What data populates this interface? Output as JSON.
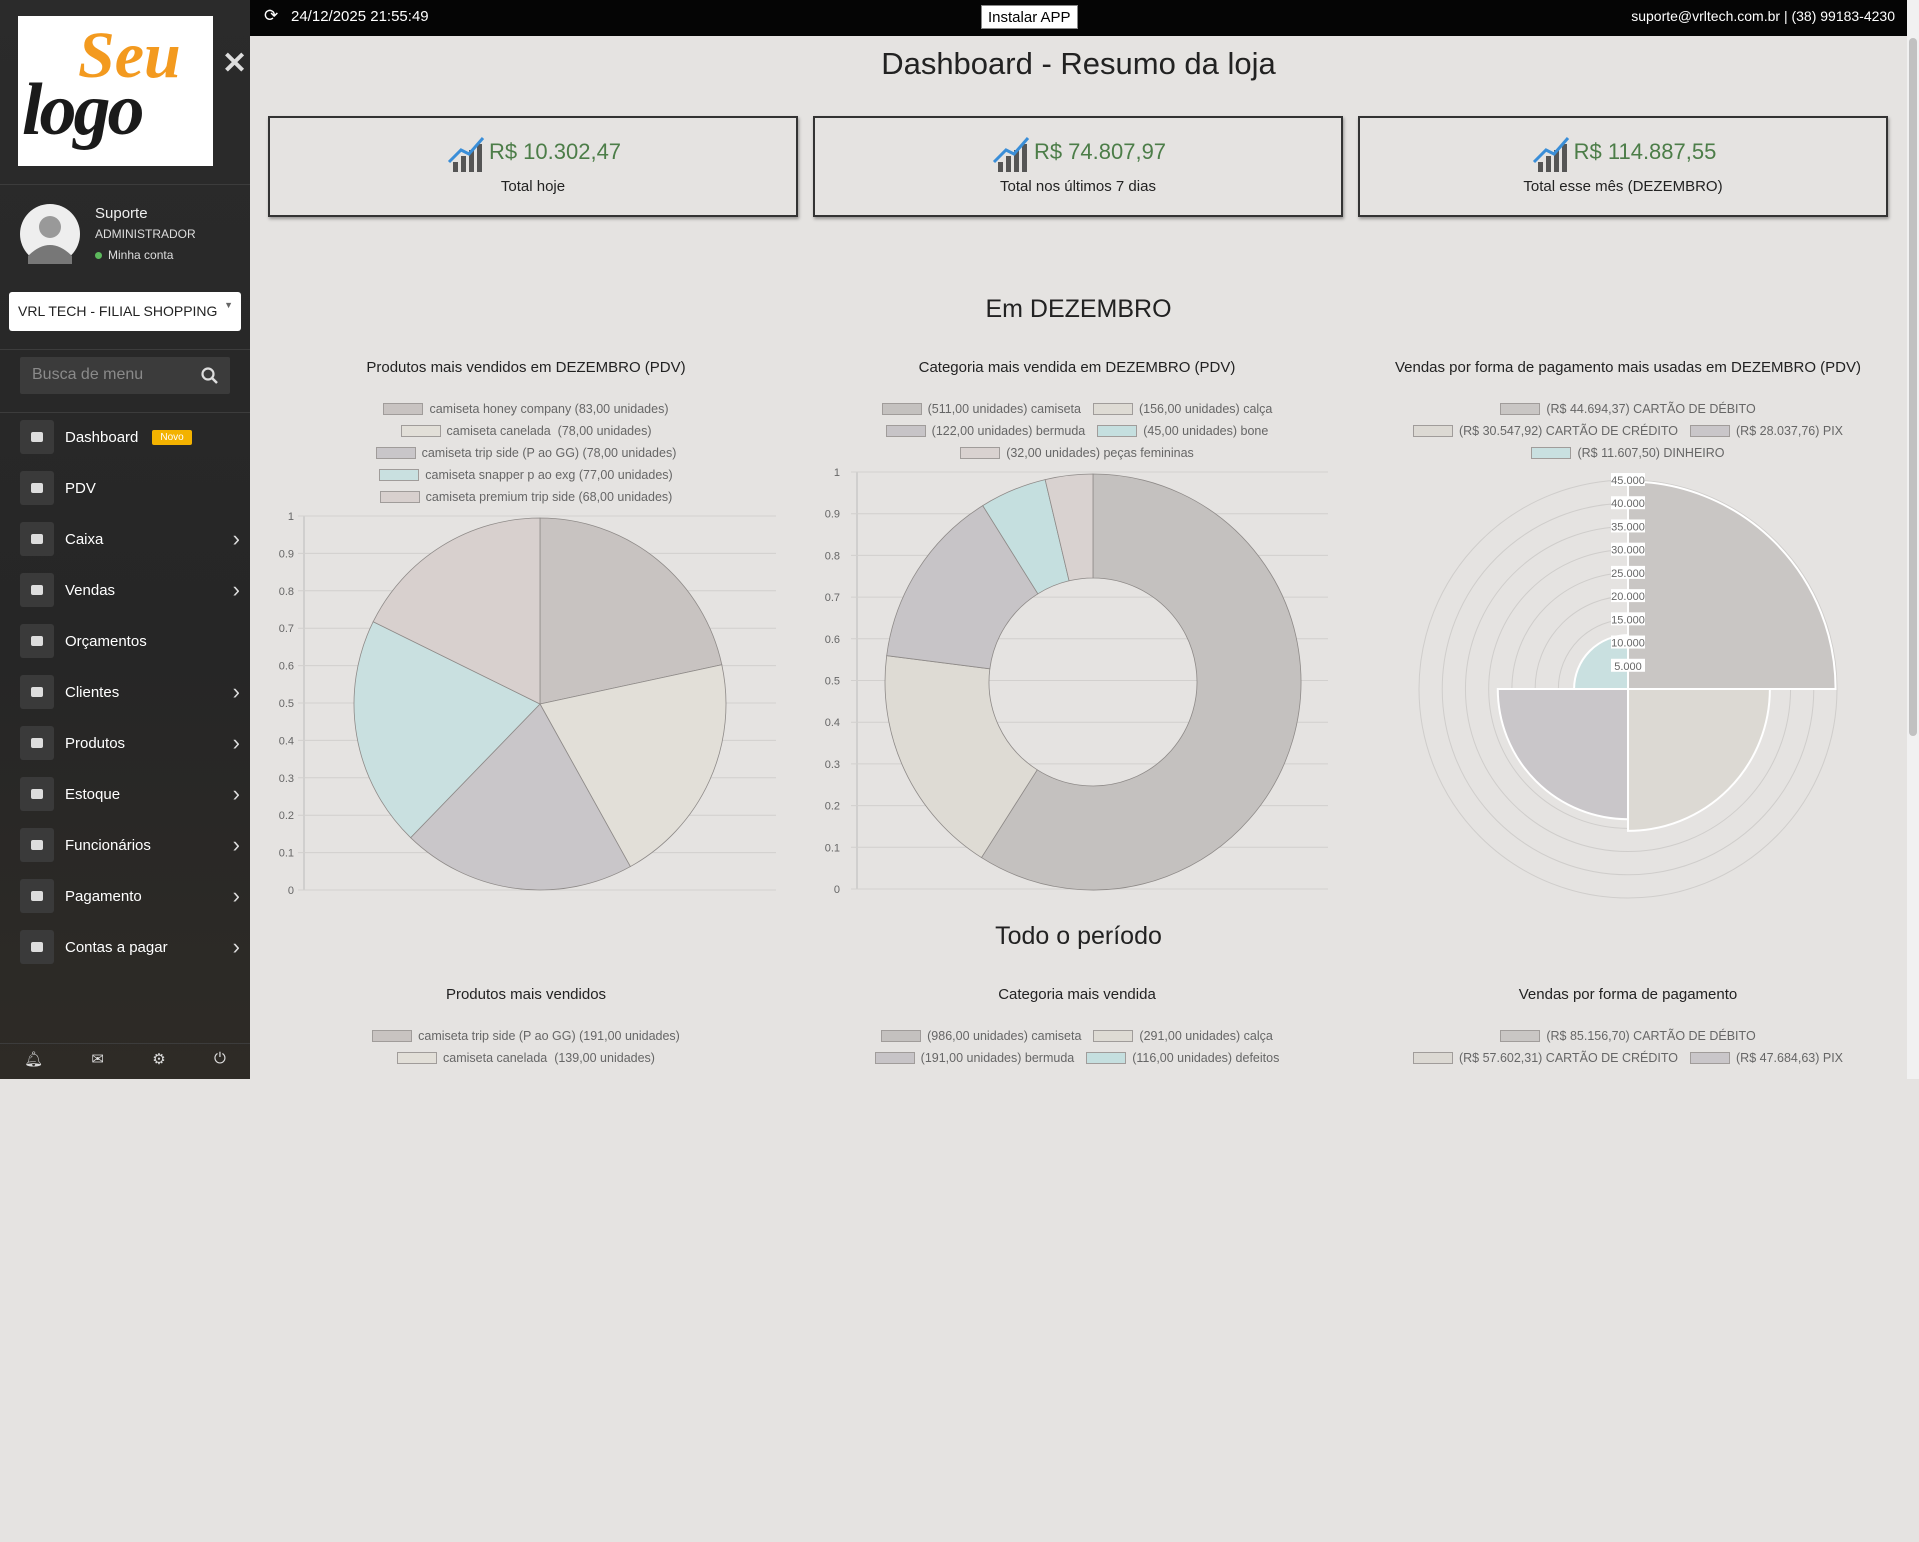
{
  "header": {
    "timestamp": "24/12/2025 21:55:49",
    "install_button": "Instalar APP",
    "contact": "suporte@vrltech.com.br | (38) 99183-4230"
  },
  "sidebar": {
    "logo": [
      "Seu",
      "logo"
    ],
    "user": {
      "name": "Suporte",
      "role": "ADMINISTRADOR",
      "account": "Minha conta"
    },
    "store": "VRL TECH - FILIAL SHOPPING",
    "search_placeholder": "Busca de menu",
    "menu": [
      {
        "label": "Dashboard",
        "badge": "Novo"
      },
      {
        "label": "PDV"
      },
      {
        "label": "Caixa",
        "submenu": true
      },
      {
        "label": "Vendas",
        "submenu": true
      },
      {
        "label": "Orçamentos"
      },
      {
        "label": "Clientes",
        "submenu": true
      },
      {
        "label": "Produtos",
        "submenu": true
      },
      {
        "label": "Estoque",
        "submenu": true
      },
      {
        "label": "Funcionários",
        "submenu": true
      },
      {
        "label": "Pagamento",
        "submenu": true
      },
      {
        "label": "Contas a pagar",
        "submenu": true
      }
    ]
  },
  "main": {
    "title": "Dashboard - Resumo da loja",
    "cards": [
      {
        "value": "R$ 10.302,47",
        "label": "Total hoje"
      },
      {
        "value": "R$ 74.807,97",
        "label": "Total nos últimos 7 dias"
      },
      {
        "value": "R$ 114.887,55",
        "label": "Total esse mês (DEZEMBRO)"
      }
    ],
    "sections": [
      {
        "title": "Em DEZEMBRO",
        "charts": [
          {
            "type": "pie",
            "title": "Produtos mais vendidos em DEZEMBRO (PDV)",
            "categories": [
              "camiseta honey company (83,00 unidades)",
              "camiseta canelada  (78,00 unidades)",
              "camiseta trip side (P ao GG) (78,00 unidades)",
              "camiseta snapper p ao exg (77,00 unidades)",
              "camiseta premium trip side (68,00 unidades)"
            ],
            "values": [
              83,
              78,
              78,
              77,
              68
            ],
            "colors": [
              "#c8c3c1",
              "#e2dfd8",
              "#c9c6c9",
              "#c9e0e0",
              "#d8d0ce"
            ],
            "ylim": [
              0,
              1
            ],
            "yticks": [
              0,
              0.1,
              0.2,
              0.3,
              0.4,
              0.5,
              0.6,
              0.7,
              0.8,
              0.9,
              1
            ]
          },
          {
            "type": "doughnut",
            "title": "Categoria mais vendida em DEZEMBRO (PDV)",
            "categories": [
              "(511,00 unidades) camiseta",
              "(156,00 unidades) calça",
              "(122,00 unidades) bermuda",
              "(45,00 unidades) bone",
              "(32,00 unidades) peças femininas"
            ],
            "values": [
              511,
              156,
              122,
              45,
              32
            ],
            "colors": [
              "#c4c1bf",
              "#dedbd4",
              "#c7c4c7",
              "#c5dfdf",
              "#d9d2d0"
            ],
            "ylim": [
              0,
              1
            ],
            "yticks": [
              0,
              0.1,
              0.2,
              0.3,
              0.4,
              0.5,
              0.6,
              0.7,
              0.8,
              0.9,
              1
            ]
          },
          {
            "type": "polarArea",
            "title": "Vendas por forma de pagamento mais usadas em DEZEMBRO (PDV)",
            "categories": [
              "(R$ 44.694,37) CARTÃO DE DÉBITO",
              "(R$ 30.547,92) CARTÃO DE CRÉDITO",
              "(R$ 28.037,76) PIX",
              "(R$ 11.607,50) DINHEIRO"
            ],
            "values": [
              44694.37,
              30547.92,
              28037.76,
              11607.5
            ],
            "colors": [
              "#c9c6c4",
              "#dcd9d3",
              "#c9c6c9",
              "#c9e0e0"
            ],
            "rlim": [
              0,
              45000
            ],
            "rticks": [
              {
                "value": 5000,
                "label": "5.000"
              },
              {
                "value": 10000,
                "label": "10.000"
              },
              {
                "value": 15000,
                "label": "15.000"
              },
              {
                "value": 20000,
                "label": "20.000"
              },
              {
                "value": 25000,
                "label": "25.000"
              },
              {
                "value": 30000,
                "label": "30.000"
              },
              {
                "value": 35000,
                "label": "35.000"
              },
              {
                "value": 40000,
                "label": "40.000"
              },
              {
                "value": 45000,
                "label": "45.000"
              }
            ]
          }
        ]
      },
      {
        "title": "Todo o período",
        "charts": [
          {
            "type": "pie",
            "title": "Produtos mais vendidos",
            "categories": [
              "camiseta trip side (P ao GG) (191,00 unidades)",
              "camiseta canelada  (139,00 unidades)"
            ],
            "colors": [
              "#c8c3c1",
              "#e2dfd8"
            ]
          },
          {
            "type": "doughnut",
            "title": "Categoria mais vendida",
            "categories": [
              "(986,00 unidades) camiseta",
              "(291,00 unidades) calça",
              "(191,00 unidades) bermuda",
              "(116,00 unidades) defeitos"
            ],
            "colors": [
              "#c4c1bf",
              "#dedbd4",
              "#c7c4c7",
              "#c5dfdf"
            ]
          },
          {
            "type": "polarArea",
            "title": "Vendas por forma de pagamento",
            "categories": [
              "(R$ 85.156,70) CARTÃO DE DÉBITO",
              "(R$ 57.602,31) CARTÃO DE CRÉDITO",
              "(R$ 47.684,63) PIX"
            ],
            "colors": [
              "#c9c6c4",
              "#dcd9d3",
              "#c9c6c9"
            ]
          }
        ]
      }
    ]
  }
}
